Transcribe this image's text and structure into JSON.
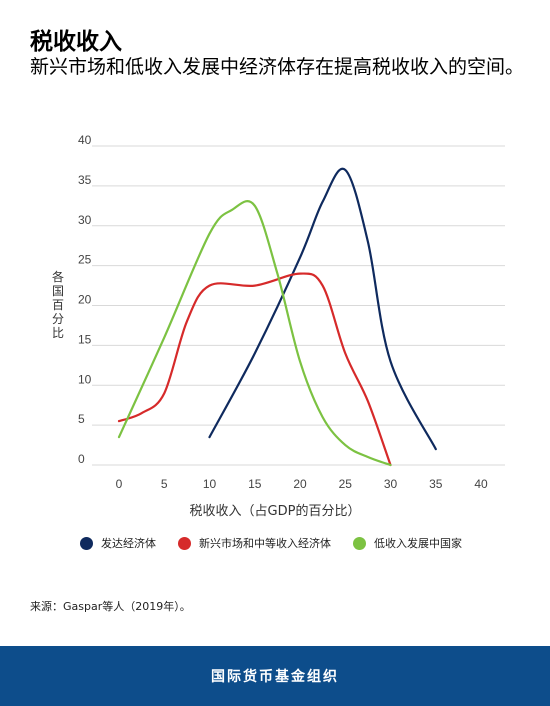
{
  "header": {
    "title": "税收收入",
    "subtitle": "新兴市场和低收入发展中经济体存在提高税收收入的空间。"
  },
  "chart_data": {
    "type": "line",
    "xlabel": "税收收入（占GDP的百分比）",
    "ylabel": "各国百分比",
    "xlim": [
      0,
      40
    ],
    "ylim": [
      0,
      40
    ],
    "x_ticks": [
      0,
      5,
      10,
      15,
      20,
      25,
      30,
      35,
      40
    ],
    "y_ticks": [
      0,
      5,
      10,
      15,
      20,
      25,
      30,
      35,
      40
    ],
    "grid": true,
    "legend_position": "bottom",
    "series": [
      {
        "name": "发达经济体",
        "color": "#0f2a5e",
        "x": [
          10,
          15,
          20,
          22.5,
          25,
          27.5,
          30,
          35
        ],
        "y": [
          3.5,
          14,
          26,
          33,
          37,
          28,
          13,
          2
        ]
      },
      {
        "name": "新兴市场和中等收入经济体",
        "color": "#d62a2a",
        "x": [
          0,
          2.5,
          5,
          7.5,
          10,
          15,
          20,
          22.5,
          25,
          27.5,
          30
        ],
        "y": [
          5.5,
          6.5,
          9,
          18,
          22.5,
          22.5,
          24,
          22.5,
          14,
          8,
          0
        ]
      },
      {
        "name": "低收入发展中国家",
        "color": "#7cc242",
        "x": [
          0,
          5,
          10,
          12.5,
          15,
          17.5,
          20,
          22.5,
          25,
          27.5,
          30
        ],
        "y": [
          3.5,
          16,
          29,
          32,
          32.5,
          24,
          13,
          6,
          2.5,
          1,
          0
        ]
      }
    ]
  },
  "source": "来源：Gaspar等人（2019年）。",
  "footer": {
    "org": "国际货币基金组织"
  }
}
